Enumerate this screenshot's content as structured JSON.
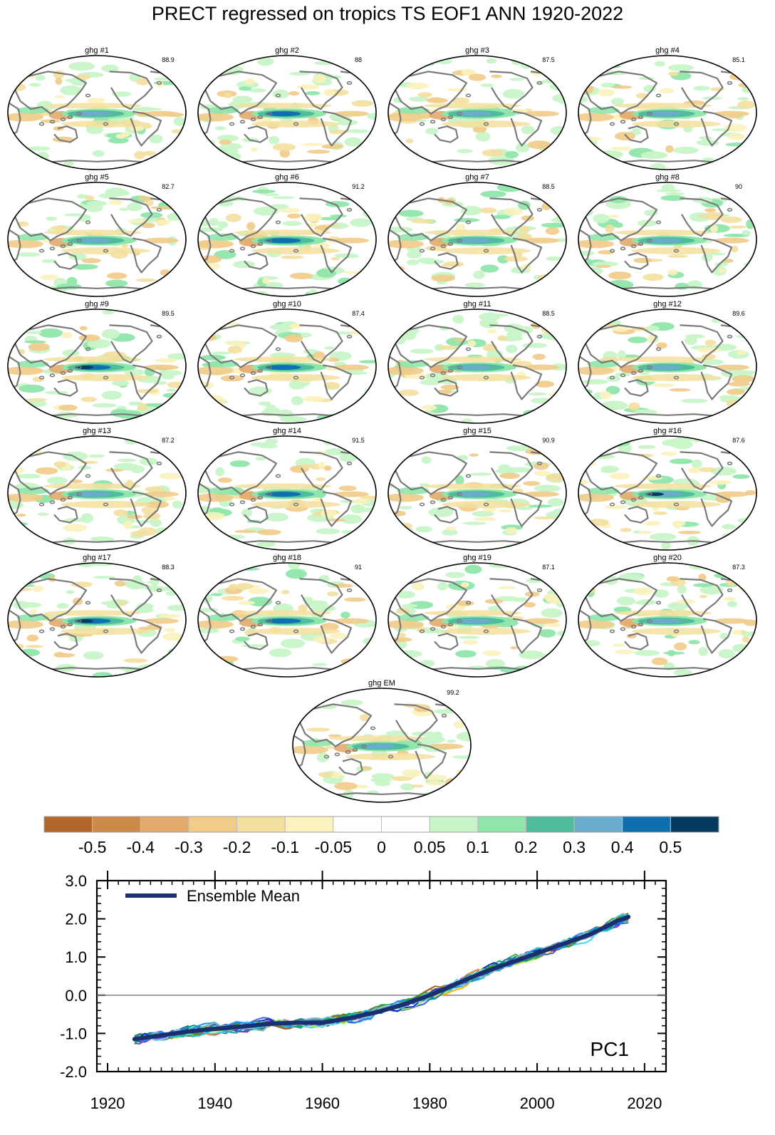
{
  "title": "PRECT regressed on tropics TS EOF1 ANN 1920-2022",
  "colors": {
    "land_outline": "#7a7a7a",
    "map_border": "#000000",
    "zero_line": "#777777",
    "ensemble_mean": "#1b2f6e"
  },
  "colorbar": {
    "colors": [
      "#b2672a",
      "#cd8947",
      "#e2aa6a",
      "#f1cb88",
      "#f3df9e",
      "#fbf2bd",
      "#ffffff",
      "#ffffff",
      "#c8f5c8",
      "#8fe6ab",
      "#4fbd9b",
      "#6aaccb",
      "#0e6fae",
      "#053b5e"
    ],
    "labels": [
      "-0.5",
      "-0.4",
      "-0.3",
      "-0.2",
      "-0.1",
      "-0.05",
      "0",
      "0.05",
      "0.1",
      "0.2",
      "0.3",
      "0.4",
      "0.5"
    ]
  },
  "maps": [
    {
      "title": "ghg #1",
      "value": "88.9"
    },
    {
      "title": "ghg #2",
      "value": "88"
    },
    {
      "title": "ghg #3",
      "value": "87.5"
    },
    {
      "title": "ghg #4",
      "value": "85.1"
    },
    {
      "title": "ghg #5",
      "value": "82.7"
    },
    {
      "title": "ghg #6",
      "value": "91.2"
    },
    {
      "title": "ghg #7",
      "value": "88.5"
    },
    {
      "title": "ghg #8",
      "value": "90"
    },
    {
      "title": "ghg #9",
      "value": "89.5"
    },
    {
      "title": "ghg #10",
      "value": "87.4"
    },
    {
      "title": "ghg #11",
      "value": "88.5"
    },
    {
      "title": "ghg #12",
      "value": "89.6"
    },
    {
      "title": "ghg #13",
      "value": "87.2"
    },
    {
      "title": "ghg #14",
      "value": "91.5"
    },
    {
      "title": "ghg #15",
      "value": "90.9"
    },
    {
      "title": "ghg #16",
      "value": "87.6"
    },
    {
      "title": "ghg #17",
      "value": "88.3"
    },
    {
      "title": "ghg #18",
      "value": "91"
    },
    {
      "title": "ghg #19",
      "value": "87.1"
    },
    {
      "title": "ghg #20",
      "value": "87.3"
    },
    {
      "title": "ghg EM",
      "value": "99.2"
    }
  ],
  "chart_data": {
    "type": "line",
    "annotation": "PC1",
    "legend": {
      "label": "Ensemble Mean",
      "placement": "top-left"
    },
    "xlim": [
      1918,
      2024
    ],
    "ylim": [
      -2.0,
      3.0
    ],
    "x_ticks": [
      1920,
      1940,
      1960,
      1980,
      2000,
      2020
    ],
    "y_ticks": [
      "-2.0",
      "-1.0",
      "0.0",
      "1.0",
      "2.0",
      "3.0"
    ],
    "zero_line": 0.0,
    "x_range": [
      1925,
      2017
    ],
    "ensemble_mean": {
      "name": "Ensemble Mean",
      "x": [
        1925,
        1930,
        1935,
        1940,
        1945,
        1950,
        1955,
        1960,
        1965,
        1970,
        1975,
        1980,
        1985,
        1990,
        1995,
        2000,
        2005,
        2010,
        2015,
        2017
      ],
      "y": [
        -1.15,
        -1.05,
        -0.95,
        -0.88,
        -0.82,
        -0.75,
        -0.72,
        -0.72,
        -0.6,
        -0.45,
        -0.25,
        0.0,
        0.3,
        0.6,
        0.85,
        1.1,
        1.35,
        1.6,
        1.95,
        2.05
      ]
    },
    "member_colors": [
      "#e6194b",
      "#3cb44b",
      "#ffb000",
      "#4363d8",
      "#f58231",
      "#911eb4",
      "#42d4f4",
      "#2aa198",
      "#bfef45",
      "#1f77b4",
      "#469990",
      "#9a6324",
      "#2ca02c",
      "#0033cc",
      "#17becf",
      "#6a5acd",
      "#00a86b",
      "#87ceeb",
      "#1e90ff",
      "#7fbfbf"
    ]
  }
}
